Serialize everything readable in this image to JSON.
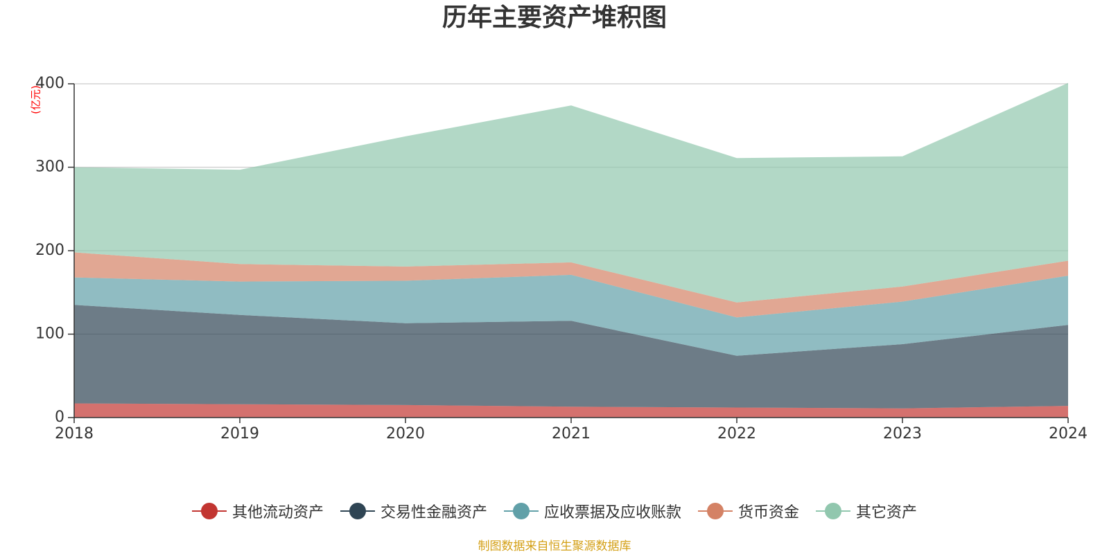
{
  "chart_data": {
    "type": "area",
    "stacked": true,
    "title": "历年主要资产堆积图",
    "ylabel": "(亿元)",
    "xlabel": "",
    "x": [
      "2018",
      "2019",
      "2020",
      "2021",
      "2022",
      "2023",
      "2024"
    ],
    "ylim": [
      0,
      400
    ],
    "yticks": [
      0,
      100,
      200,
      300,
      400
    ],
    "grid": true,
    "legend_position": "bottom",
    "series": [
      {
        "name": "其他流动资产",
        "color": "#c23531",
        "values": [
          17,
          16,
          15,
          13,
          12,
          11,
          14
        ]
      },
      {
        "name": "交易性金融资产",
        "color": "#2f4554",
        "values": [
          118,
          107,
          98,
          103,
          62,
          77,
          97
        ]
      },
      {
        "name": "应收票据及应收账款",
        "color": "#61a0a8",
        "values": [
          33,
          40,
          51,
          55,
          46,
          51,
          59
        ]
      },
      {
        "name": "货币资金",
        "color": "#d48265",
        "values": [
          30,
          21,
          17,
          15,
          18,
          18,
          18
        ]
      },
      {
        "name": "其它资产",
        "color": "#91c7ae",
        "values": [
          102,
          113,
          156,
          188,
          173,
          156,
          213
        ]
      }
    ],
    "source": "制图数据来自恒生聚源数据库"
  }
}
